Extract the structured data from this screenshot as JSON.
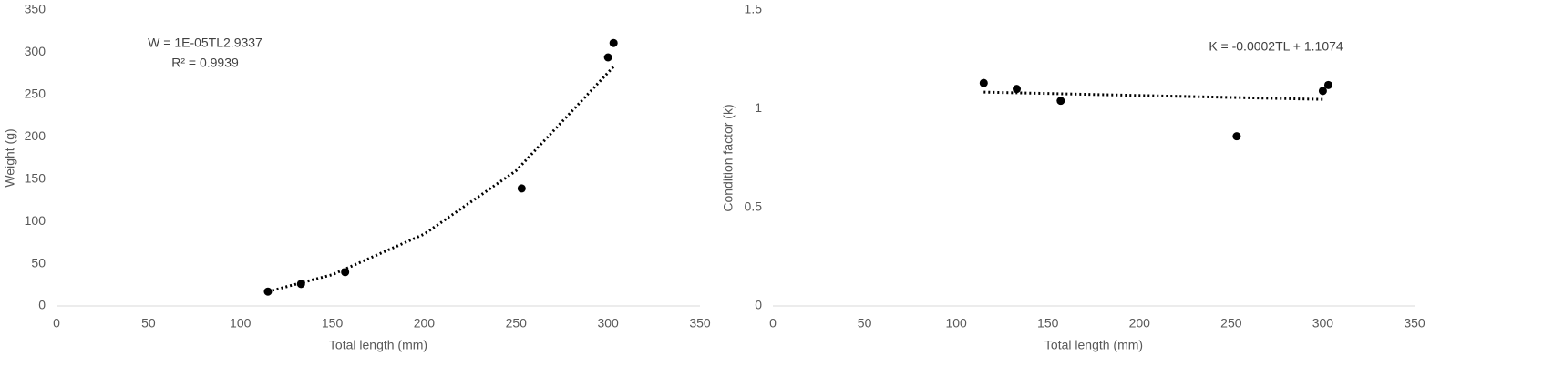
{
  "chart_data": [
    {
      "type": "scatter",
      "x_label": "Total length (mm)",
      "y_label": "Weight (g)",
      "annotations": [
        "W = 1E-05TL2.9337",
        "R² = 0.9939"
      ],
      "x": [
        115,
        133,
        157,
        253,
        300,
        303
      ],
      "values": [
        17,
        26,
        40,
        139,
        294,
        311
      ],
      "color": "#000000",
      "trendline": {
        "x": [
          115,
          150,
          200,
          250,
          303
        ],
        "values": [
          17,
          37,
          85,
          160,
          283
        ],
        "color": "#000000",
        "style": "dotted"
      },
      "xlim": [
        0,
        350
      ],
      "xticks": [
        0,
        50,
        100,
        150,
        200,
        250,
        300,
        350
      ],
      "ylim": [
        0,
        350
      ],
      "yticks": [
        0,
        50,
        100,
        150,
        200,
        250,
        300,
        350
      ],
      "grid": false
    },
    {
      "type": "scatter",
      "x_label": "Total length (mm)",
      "y_label": "Condition factor (k)",
      "annotations": [
        "K = -0.0002TL + 1.1074"
      ],
      "x": [
        115,
        133,
        157,
        253,
        300,
        303
      ],
      "values": [
        1.13,
        1.1,
        1.04,
        0.86,
        1.09,
        1.12
      ],
      "color": "#000000",
      "trendline": {
        "x": [
          115,
          300
        ],
        "values": [
          1.084,
          1.047
        ],
        "color": "#000000",
        "style": "dotted"
      },
      "xlim": [
        0,
        350
      ],
      "xticks": [
        0,
        50,
        100,
        150,
        200,
        250,
        300,
        350
      ],
      "ylim": [
        0,
        1.5
      ],
      "yticks": [
        0,
        0.5,
        1,
        1.5
      ],
      "grid": false
    }
  ]
}
